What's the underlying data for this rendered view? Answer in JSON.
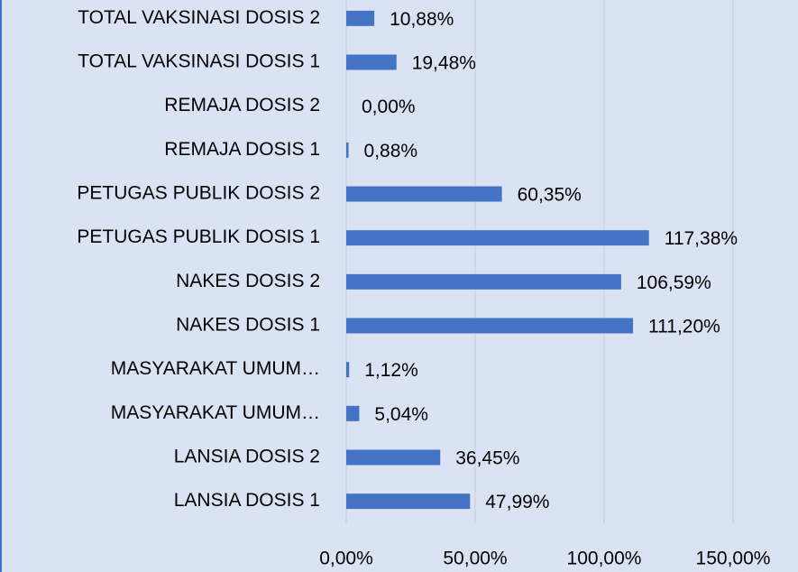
{
  "chart_data": {
    "type": "bar",
    "orientation": "horizontal",
    "categories": [
      "TOTAL VAKSINASI DOSIS 2",
      "TOTAL VAKSINASI DOSIS 1",
      "REMAJA DOSIS 2",
      "REMAJA DOSIS 1",
      "PETUGAS PUBLIK DOSIS 2",
      "PETUGAS PUBLIK DOSIS 1",
      "NAKES DOSIS 2",
      "NAKES DOSIS 1",
      "MASYARAKAT UMUM…",
      "MASYARAKAT UMUM…",
      "LANSIA DOSIS 2",
      "LANSIA DOSIS 1"
    ],
    "values": [
      10.88,
      19.48,
      0,
      0.88,
      60.35,
      117.38,
      106.59,
      111.2,
      1.12,
      5.04,
      36.45,
      47.99
    ],
    "value_labels": [
      "10,88%",
      "19,48%",
      "0,00%",
      "0,88%",
      "60,35%",
      "117,38%",
      "106,59%",
      "111,20%",
      "1,12%",
      "5,04%",
      "36,45%",
      "47,99%"
    ],
    "color": "#4472c4",
    "xlim": [
      0,
      150
    ],
    "xticks": [
      {
        "value": 0,
        "label": "0,00%"
      },
      {
        "value": 50,
        "label": "50,00%"
      },
      {
        "value": 100,
        "label": "100,00%"
      },
      {
        "value": 150,
        "label": "150,00%"
      }
    ],
    "grid": true
  }
}
